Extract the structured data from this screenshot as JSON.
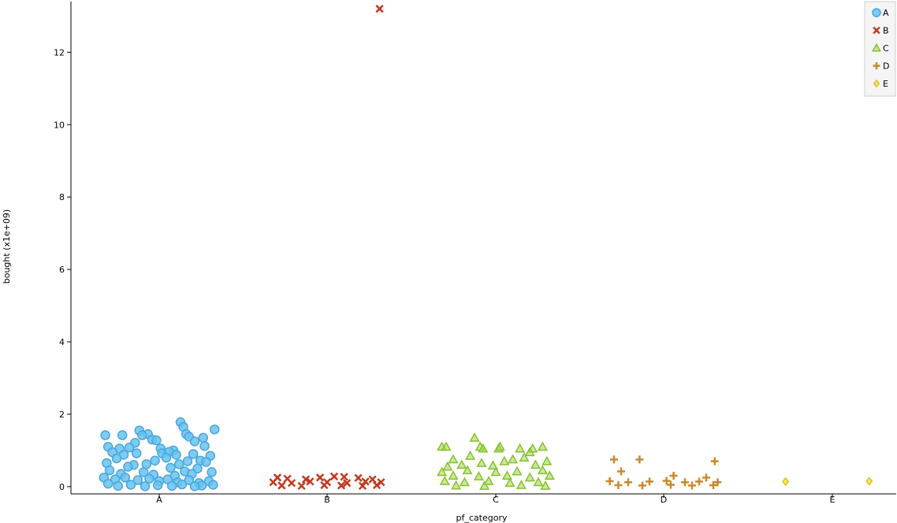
{
  "chart_data": {
    "type": "scatter",
    "xlabel": "pf_category",
    "ylabel": "bought (x1e+09)",
    "categories": [
      "A",
      "B",
      "C",
      "D",
      "E"
    ],
    "ylim": [
      -0.2,
      13.4
    ],
    "yticks": [
      0,
      2,
      4,
      6,
      8,
      10,
      12
    ],
    "legend_position": "top-right",
    "series": [
      {
        "name": "A",
        "marker": "circle",
        "color": "#67c3ef",
        "stroke": "#4aa6dd",
        "points": [
          [
            -0.38,
            1.42
          ],
          [
            -0.26,
            1.42
          ],
          [
            -0.14,
            1.55
          ],
          [
            -0.08,
            1.45
          ],
          [
            0.15,
            1.78
          ],
          [
            0.17,
            1.65
          ],
          [
            0.19,
            1.45
          ],
          [
            0.21,
            1.38
          ],
          [
            0.25,
            1.25
          ],
          [
            0.31,
            1.35
          ],
          [
            0.39,
            1.58
          ],
          [
            -0.12,
            1.42
          ],
          [
            -0.05,
            1.3
          ],
          [
            -0.02,
            1.28
          ],
          [
            -0.17,
            1.21
          ],
          [
            -0.28,
            1.05
          ],
          [
            -0.36,
            1.1
          ],
          [
            -0.21,
            1.08
          ],
          [
            0.01,
            1.05
          ],
          [
            0.1,
            1.0
          ],
          [
            0.32,
            1.12
          ],
          [
            -0.33,
            0.95
          ],
          [
            -0.25,
            0.88
          ],
          [
            -0.16,
            0.92
          ],
          [
            0.02,
            0.92
          ],
          [
            0.07,
            0.96
          ],
          [
            0.12,
            0.88
          ],
          [
            0.24,
            0.9
          ],
          [
            0.36,
            0.85
          ],
          [
            0.05,
            0.8
          ],
          [
            -0.03,
            0.72
          ],
          [
            0.2,
            0.7
          ],
          [
            0.29,
            0.72
          ],
          [
            -0.37,
            0.65
          ],
          [
            -0.3,
            0.78
          ],
          [
            -0.18,
            0.6
          ],
          [
            -0.09,
            0.62
          ],
          [
            0.14,
            0.62
          ],
          [
            0.33,
            0.68
          ],
          [
            -0.22,
            0.55
          ],
          [
            0.08,
            0.52
          ],
          [
            0.27,
            0.5
          ],
          [
            -0.35,
            0.45
          ],
          [
            -0.11,
            0.4
          ],
          [
            0.18,
            0.42
          ],
          [
            0.37,
            0.4
          ],
          [
            -0.27,
            0.35
          ],
          [
            -0.04,
            0.33
          ],
          [
            0.11,
            0.3
          ],
          [
            0.23,
            0.35
          ],
          [
            -0.39,
            0.25
          ],
          [
            -0.31,
            0.2
          ],
          [
            -0.24,
            0.25
          ],
          [
            -0.15,
            0.18
          ],
          [
            -0.07,
            0.22
          ],
          [
            0.0,
            0.15
          ],
          [
            0.06,
            0.2
          ],
          [
            0.13,
            0.12
          ],
          [
            0.21,
            0.18
          ],
          [
            0.28,
            0.1
          ],
          [
            0.35,
            0.15
          ],
          [
            -0.36,
            0.08
          ],
          [
            -0.2,
            0.05
          ],
          [
            -0.01,
            0.04
          ],
          [
            0.16,
            0.06
          ],
          [
            0.3,
            0.03
          ],
          [
            0.38,
            0.05
          ],
          [
            -0.29,
            0.02
          ],
          [
            -0.1,
            0.01
          ],
          [
            0.09,
            0.02
          ],
          [
            0.25,
            0.01
          ]
        ]
      },
      {
        "name": "B",
        "marker": "x",
        "color": "#d33e22",
        "stroke": "#c23a1f",
        "points": [
          [
            0.37,
            13.2
          ],
          [
            -0.35,
            0.25
          ],
          [
            -0.28,
            0.22
          ],
          [
            -0.15,
            0.2
          ],
          [
            -0.05,
            0.25
          ],
          [
            0.05,
            0.28
          ],
          [
            0.12,
            0.27
          ],
          [
            0.22,
            0.24
          ],
          [
            0.32,
            0.2
          ],
          [
            -0.38,
            0.12
          ],
          [
            -0.25,
            0.1
          ],
          [
            -0.12,
            0.14
          ],
          [
            0.0,
            0.12
          ],
          [
            0.14,
            0.1
          ],
          [
            0.27,
            0.14
          ],
          [
            0.38,
            0.12
          ],
          [
            -0.32,
            0.03
          ],
          [
            -0.18,
            0.02
          ],
          [
            -0.02,
            0.04
          ],
          [
            0.1,
            0.03
          ],
          [
            0.25,
            0.02
          ],
          [
            0.35,
            0.04
          ]
        ]
      },
      {
        "name": "C",
        "marker": "triangle",
        "color": "#9fd64a",
        "stroke": "#86c12e",
        "points": [
          [
            -0.38,
            1.1
          ],
          [
            -0.35,
            1.1
          ],
          [
            -0.15,
            1.35
          ],
          [
            -0.11,
            1.1
          ],
          [
            -0.09,
            1.05
          ],
          [
            0.02,
            1.05
          ],
          [
            0.03,
            1.1
          ],
          [
            0.17,
            1.05
          ],
          [
            0.26,
            1.05
          ],
          [
            0.33,
            1.1
          ],
          [
            0.24,
            0.95
          ],
          [
            -0.3,
            0.75
          ],
          [
            -0.18,
            0.85
          ],
          [
            -0.1,
            0.65
          ],
          [
            0.06,
            0.7
          ],
          [
            0.12,
            0.75
          ],
          [
            0.2,
            0.8
          ],
          [
            0.36,
            0.7
          ],
          [
            -0.34,
            0.55
          ],
          [
            -0.24,
            0.6
          ],
          [
            -0.02,
            0.58
          ],
          [
            0.28,
            0.6
          ],
          [
            -0.38,
            0.4
          ],
          [
            -0.2,
            0.45
          ],
          [
            0.0,
            0.4
          ],
          [
            0.15,
            0.42
          ],
          [
            0.33,
            0.45
          ],
          [
            -0.3,
            0.3
          ],
          [
            -0.12,
            0.28
          ],
          [
            0.08,
            0.3
          ],
          [
            0.24,
            0.25
          ],
          [
            0.38,
            0.3
          ],
          [
            -0.36,
            0.15
          ],
          [
            -0.22,
            0.12
          ],
          [
            -0.05,
            0.15
          ],
          [
            0.1,
            0.1
          ],
          [
            0.3,
            0.12
          ],
          [
            -0.28,
            0.03
          ],
          [
            -0.08,
            0.02
          ],
          [
            0.18,
            0.04
          ],
          [
            0.35,
            0.02
          ]
        ]
      },
      {
        "name": "D",
        "marker": "plus",
        "color": "#d89a3a",
        "stroke": "#c9892a",
        "points": [
          [
            -0.35,
            0.75
          ],
          [
            -0.3,
            0.42
          ],
          [
            -0.17,
            0.75
          ],
          [
            0.36,
            0.7
          ],
          [
            0.07,
            0.3
          ],
          [
            0.3,
            0.25
          ],
          [
            -0.38,
            0.15
          ],
          [
            -0.25,
            0.12
          ],
          [
            -0.1,
            0.14
          ],
          [
            0.02,
            0.16
          ],
          [
            0.15,
            0.12
          ],
          [
            0.25,
            0.14
          ],
          [
            0.38,
            0.12
          ],
          [
            -0.32,
            0.04
          ],
          [
            -0.15,
            0.03
          ],
          [
            0.05,
            0.05
          ],
          [
            0.2,
            0.03
          ],
          [
            0.35,
            0.04
          ]
        ]
      },
      {
        "name": "E",
        "marker": "diamond",
        "color": "#f4ed4c",
        "stroke": "#d9c22a",
        "points": [
          [
            -0.33,
            0.14
          ],
          [
            0.26,
            0.15
          ]
        ]
      }
    ]
  }
}
